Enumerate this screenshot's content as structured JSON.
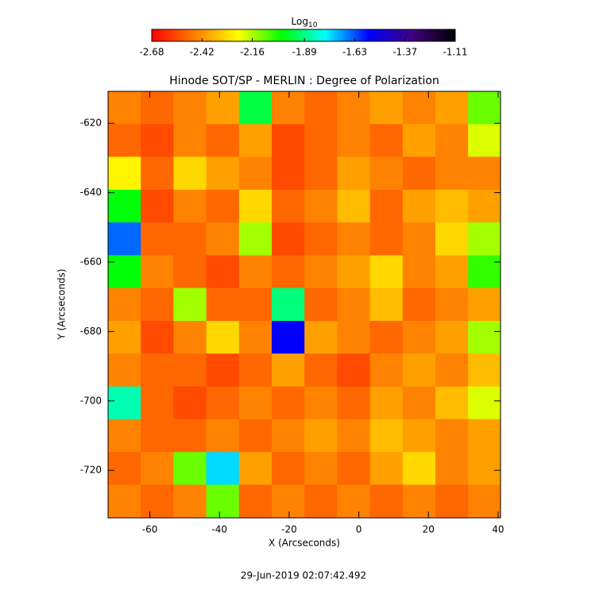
{
  "chart_data": {
    "type": "heatmap",
    "title": "Hinode SOT/SP - MERLIN : Degree of Polarization",
    "xlabel": "X (Arcseconds)",
    "ylabel": "Y (Arcseconds)",
    "footer": "29-Jun-2019 02:07:42.492",
    "colorbar_label": "Log",
    "colorbar_label_sub": "10",
    "colorbar_lim": [
      -2.68,
      -1.11
    ],
    "colorbar_ticks": [
      -2.68,
      -2.42,
      -2.16,
      -1.89,
      -1.63,
      -1.37,
      -1.11
    ],
    "colormap": [
      "#ff0000",
      "#ff8000",
      "#ffff00",
      "#00ff00",
      "#00ffff",
      "#0000ff",
      "#400080",
      "#000000"
    ],
    "xlim": [
      -72,
      40.7
    ],
    "ylim": [
      -733.7,
      -610.8
    ],
    "xticks": [
      -60,
      -40,
      -20,
      0,
      20,
      40
    ],
    "yticks": [
      -620,
      -640,
      -660,
      -680,
      -700,
      -720
    ],
    "x": [
      -67.3,
      -57.9,
      -48.5,
      -39.1,
      -29.7,
      -20.3,
      -10.9,
      -1.5,
      7.9,
      17.3,
      26.7,
      36.1
    ],
    "y": [
      -615.5,
      -625,
      -634.4,
      -643.9,
      -653.3,
      -662.8,
      -672.2,
      -681.7,
      -691.1,
      -700.6,
      -710,
      -719.5,
      -728.9
    ],
    "z": [
      [
        -2.45,
        -2.5,
        -2.45,
        -2.4,
        -1.95,
        -2.45,
        -2.5,
        -2.45,
        -2.4,
        -2.45,
        -2.4,
        -2.1
      ],
      [
        -2.5,
        -2.55,
        -2.45,
        -2.5,
        -2.4,
        -2.55,
        -2.5,
        -2.45,
        -2.5,
        -2.4,
        -2.45,
        -2.2
      ],
      [
        -2.25,
        -2.5,
        -2.3,
        -2.4,
        -2.45,
        -2.55,
        -2.5,
        -2.4,
        -2.45,
        -2.5,
        -2.45,
        -2.45
      ],
      [
        -2.0,
        -2.55,
        -2.45,
        -2.5,
        -2.3,
        -2.5,
        -2.45,
        -2.35,
        -2.5,
        -2.4,
        -2.35,
        -2.4
      ],
      [
        -1.65,
        -2.5,
        -2.5,
        -2.45,
        -2.15,
        -2.55,
        -2.5,
        -2.45,
        -2.5,
        -2.45,
        -2.3,
        -2.15
      ],
      [
        -2.0,
        -2.45,
        -2.5,
        -2.55,
        -2.45,
        -2.5,
        -2.45,
        -2.4,
        -2.3,
        -2.45,
        -2.4,
        -2.05
      ],
      [
        -2.45,
        -2.5,
        -2.15,
        -2.5,
        -2.5,
        -1.9,
        -2.5,
        -2.45,
        -2.35,
        -2.5,
        -2.45,
        -2.4
      ],
      [
        -2.4,
        -2.55,
        -2.45,
        -2.3,
        -2.45,
        -1.55,
        -2.4,
        -2.45,
        -2.5,
        -2.45,
        -2.4,
        -2.15
      ],
      [
        -2.45,
        -2.5,
        -2.5,
        -2.55,
        -2.5,
        -2.4,
        -2.5,
        -2.55,
        -2.45,
        -2.4,
        -2.45,
        -2.35
      ],
      [
        -1.85,
        -2.5,
        -2.55,
        -2.5,
        -2.45,
        -2.5,
        -2.45,
        -2.5,
        -2.4,
        -2.45,
        -2.35,
        -2.2
      ],
      [
        -2.45,
        -2.5,
        -2.5,
        -2.45,
        -2.5,
        -2.45,
        -2.4,
        -2.45,
        -2.35,
        -2.4,
        -2.45,
        -2.4
      ],
      [
        -2.5,
        -2.45,
        -2.1,
        -1.75,
        -2.4,
        -2.5,
        -2.45,
        -2.5,
        -2.4,
        -2.3,
        -2.45,
        -2.4
      ],
      [
        -2.45,
        -2.5,
        -2.45,
        -2.1,
        -2.5,
        -2.45,
        -2.5,
        -2.45,
        -2.5,
        -2.45,
        -2.5,
        -2.45
      ]
    ]
  }
}
